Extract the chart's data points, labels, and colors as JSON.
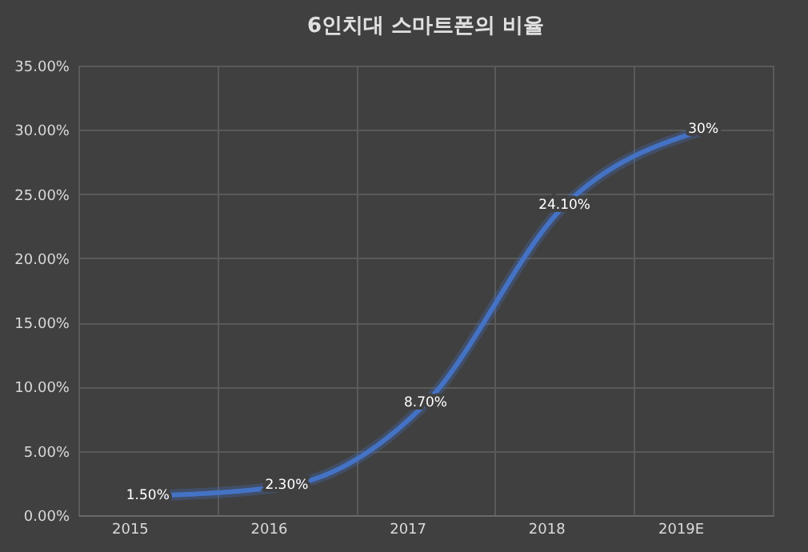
{
  "chart_data": {
    "type": "line",
    "title": "6인치대 스마트폰의 비율",
    "categories": [
      "2015",
      "2016",
      "2017",
      "2018",
      "2019E"
    ],
    "series": [
      {
        "color": "#4472c4",
        "values": [
          1.5,
          2.3,
          8.7,
          24.1,
          30
        ],
        "value_labels": [
          "1.50%",
          "2.30%",
          "8.70%",
          "24.10%",
          "30%"
        ]
      }
    ],
    "ylim": [
      0,
      35
    ],
    "yticks": [
      {
        "value": 0,
        "label": "0.00%"
      },
      {
        "value": 5,
        "label": "5.00%"
      },
      {
        "value": 10,
        "label": "10.00%"
      },
      {
        "value": 15,
        "label": "15.00%"
      },
      {
        "value": 20,
        "label": "20.00%"
      },
      {
        "value": 25,
        "label": "25.00%"
      },
      {
        "value": 30,
        "label": "30.00%"
      },
      {
        "value": 35,
        "label": "35.00%"
      }
    ],
    "grid": true,
    "marker": "none",
    "line_style": "solid"
  }
}
